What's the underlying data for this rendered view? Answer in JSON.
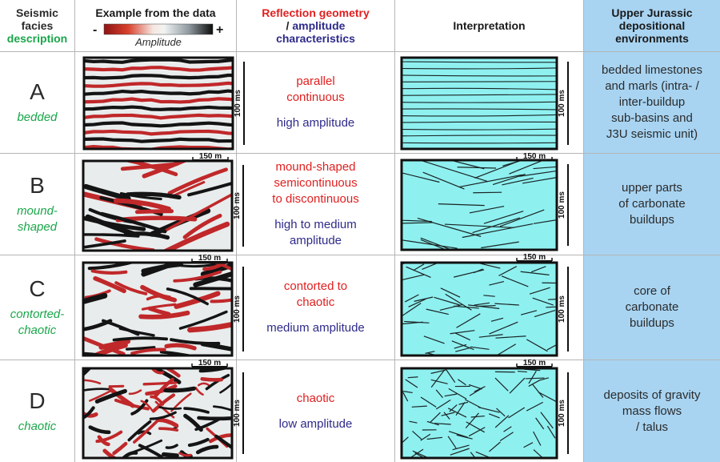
{
  "headers": {
    "col1_line1": "Seismic",
    "col1_line2": "facies",
    "col1_line3": "description",
    "col2_title": "Example from the data",
    "col2_minus": "-",
    "col2_plus": "+",
    "col2_amplitude": "Amplitude",
    "col3_line1": "Reflection geometry",
    "col3_slash": "/",
    "col3_line2": "amplitude",
    "col3_line3": "characteristics",
    "col4_title": "Interpretation",
    "col5_line1": "Upper Jurassic",
    "col5_line2": "depositional",
    "col5_line3": "environments"
  },
  "scale": {
    "horizontal": "150 m",
    "vertical": "100 ms"
  },
  "rows": [
    {
      "letter": "A",
      "desc": [
        "bedded"
      ],
      "geometry": [
        "parallel",
        "continuous"
      ],
      "amplitude": [
        "high amplitude"
      ],
      "environment": [
        "bedded limestones",
        "and marls (intra- /",
        "inter-buildup",
        "sub-basins and",
        "J3U seismic unit)"
      ]
    },
    {
      "letter": "B",
      "desc": [
        "mound-",
        "shaped"
      ],
      "geometry": [
        "mound-shaped",
        "semicontinuous",
        "to discontinuous"
      ],
      "amplitude": [
        "high to medium",
        "amplitude"
      ],
      "environment": [
        "upper parts",
        "of carbonate",
        "buildups"
      ]
    },
    {
      "letter": "C",
      "desc": [
        "contorted-",
        "chaotic"
      ],
      "geometry": [
        "contorted to",
        "chaotic"
      ],
      "amplitude": [
        "medium amplitude"
      ],
      "environment": [
        "core of",
        "carbonate",
        "buildups"
      ]
    },
    {
      "letter": "D",
      "desc": [
        "chaotic"
      ],
      "geometry": [
        "chaotic"
      ],
      "amplitude": [
        "low amplitude"
      ],
      "environment": [
        "deposits of gravity",
        "mass flows",
        "/ talus"
      ]
    }
  ],
  "colors": {
    "red": "#e02020",
    "blue": "#2e2a8a",
    "green": "#1aa64a",
    "env_bg": "#a8d4f2",
    "interp_bg": "#8ff0f0",
    "seismic_red": "#c0282a",
    "seismic_black": "#141414"
  }
}
